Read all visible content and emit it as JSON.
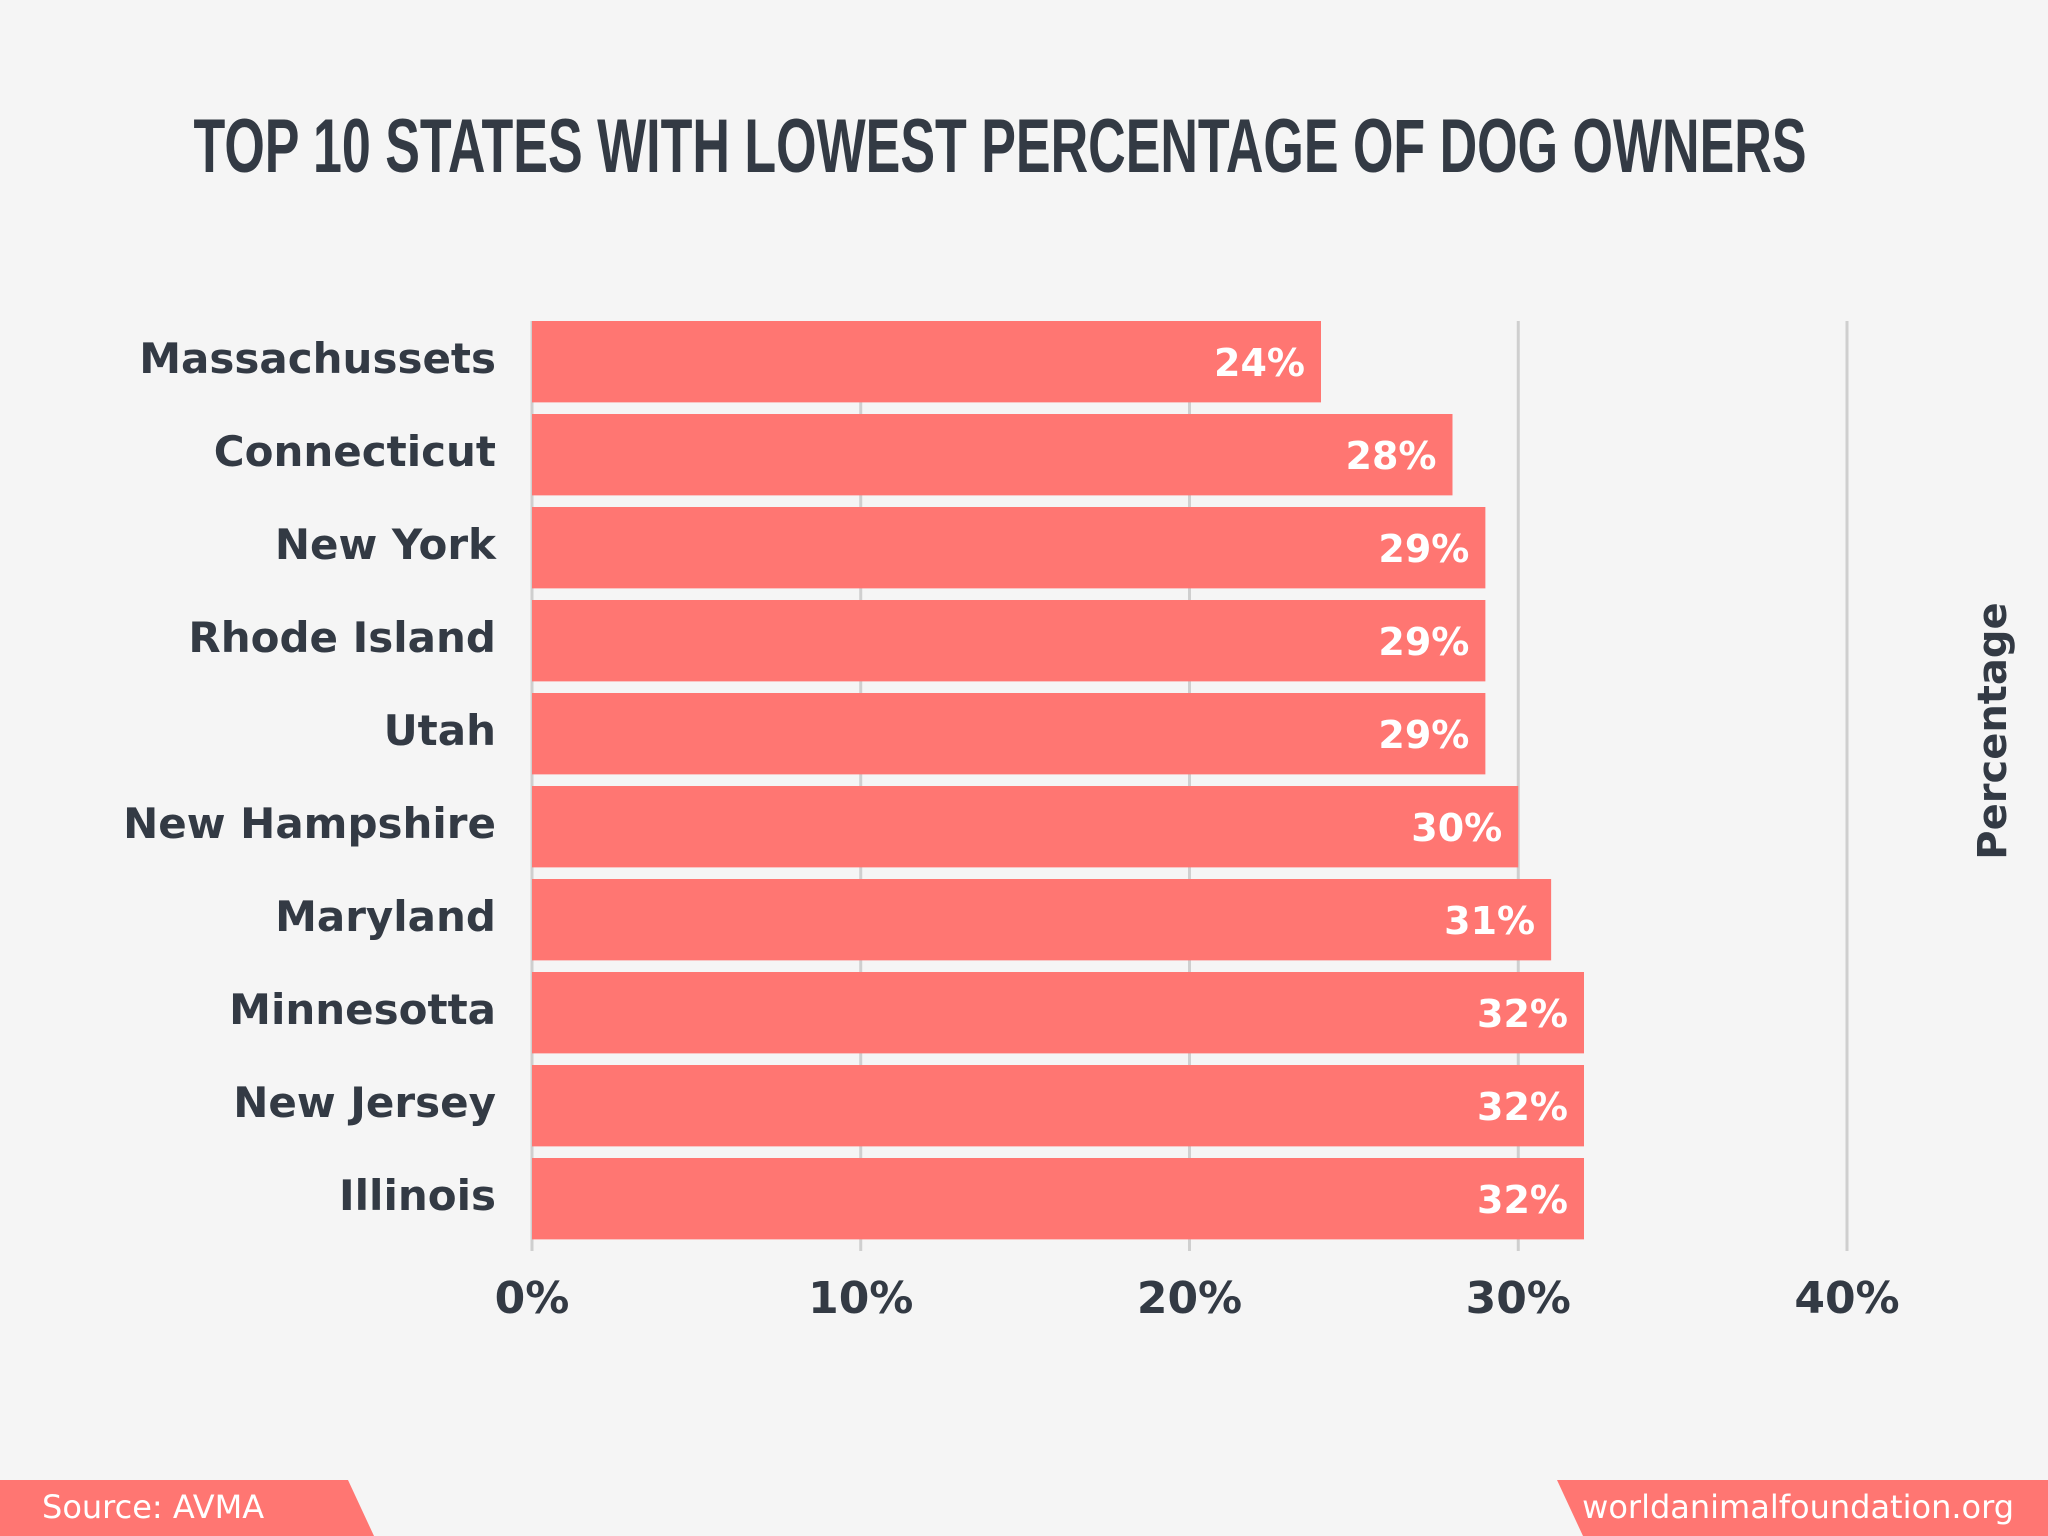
{
  "chart_data": {
    "type": "hbar",
    "title": "TOP 10 STATES WITH LOWEST PERCENTAGE OF DOG OWNERS",
    "categories": [
      "Massachussets",
      "Connecticut",
      "New York",
      "Rhode Island",
      "Utah",
      "New Hampshire",
      "Maryland",
      "Minnesotta",
      "New Jersey",
      "Illinois"
    ],
    "values": [
      24,
      28,
      29,
      29,
      29,
      30,
      31,
      32,
      32,
      32
    ],
    "value_labels": [
      "24%",
      "28%",
      "29%",
      "29%",
      "29%",
      "30%",
      "31%",
      "32%",
      "32%",
      "32%"
    ],
    "color": "#ff7672",
    "xlim": [
      0,
      40
    ],
    "xticks": [
      {
        "value": 0,
        "label": "0%"
      },
      {
        "value": 10,
        "label": "10%"
      },
      {
        "value": 20,
        "label": "20%"
      },
      {
        "value": 30,
        "label": "30%"
      },
      {
        "value": 40,
        "label": "40%"
      }
    ],
    "grid": true,
    "ylabel": "Percentage",
    "source": "Source: AVMA",
    "website": "worldanimalfoundation.org"
  }
}
